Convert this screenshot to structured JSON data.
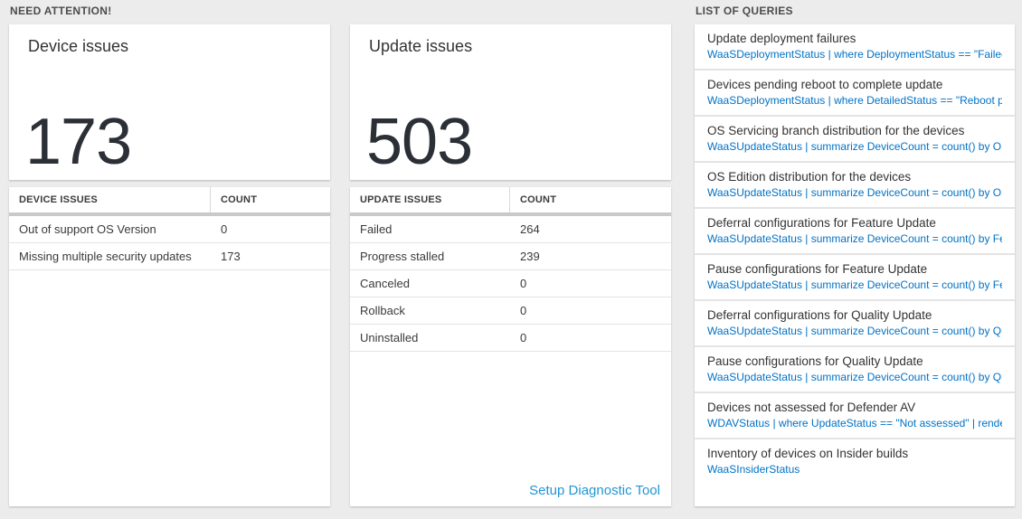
{
  "colors": {
    "page_bg": "#ececec",
    "query_link": "#0072c6",
    "action_link": "#2196d6",
    "big_number": "#2b2f36",
    "band": "#c9c9c9"
  },
  "sections": {
    "need_attention": {
      "label": "NEED ATTENTION!"
    },
    "queries": {
      "label": "LIST OF QUERIES"
    }
  },
  "device_card": {
    "title": "Device issues",
    "count": "173",
    "table": {
      "headers": [
        "DEVICE ISSUES",
        "COUNT"
      ],
      "rows": [
        {
          "label": "Out of support OS Version",
          "count": "0"
        },
        {
          "label": "Missing multiple security updates",
          "count": "173"
        }
      ]
    }
  },
  "update_card": {
    "title": "Update issues",
    "count": "503",
    "table": {
      "headers": [
        "UPDATE ISSUES",
        "COUNT"
      ],
      "rows": [
        {
          "label": "Failed",
          "count": "264"
        },
        {
          "label": "Progress stalled",
          "count": "239"
        },
        {
          "label": "Canceled",
          "count": "0"
        },
        {
          "label": "Rollback",
          "count": "0"
        },
        {
          "label": "Uninstalled",
          "count": "0"
        }
      ]
    },
    "link_label": "Setup Diagnostic Tool"
  },
  "queries_panel": {
    "items": [
      {
        "title": "Update deployment failures",
        "query": "WaaSDeploymentStatus | where DeploymentStatus == \"Failed\" |..."
      },
      {
        "title": "Devices pending reboot to complete update",
        "query": "WaaSDeploymentStatus | where DetailedStatus == \"Reboot pend..."
      },
      {
        "title": "OS Servicing branch distribution for the devices",
        "query": "WaaSUpdateStatus | summarize DeviceCount = count() by OSSer..."
      },
      {
        "title": "OS Edition distribution for the devices",
        "query": "WaaSUpdateStatus | summarize DeviceCount = count() by OSEdit..."
      },
      {
        "title": "Deferral configurations for Feature Update",
        "query": "WaaSUpdateStatus | summarize DeviceCount = count() by Featur..."
      },
      {
        "title": "Pause configurations for Feature Update",
        "query": "WaaSUpdateStatus | summarize DeviceCount = count() by Featur..."
      },
      {
        "title": "Deferral configurations for Quality Update",
        "query": "WaaSUpdateStatus | summarize DeviceCount = count() by Qualit..."
      },
      {
        "title": "Pause configurations for Quality Update",
        "query": "WaaSUpdateStatus | summarize DeviceCount = count() by Qualit..."
      },
      {
        "title": "Devices not assessed for Defender AV",
        "query": "WDAVStatus | where UpdateStatus == \"Not assessed\" | render ta..."
      },
      {
        "title": "Inventory of devices on Insider builds",
        "query": "WaaSInsiderStatus"
      }
    ]
  }
}
